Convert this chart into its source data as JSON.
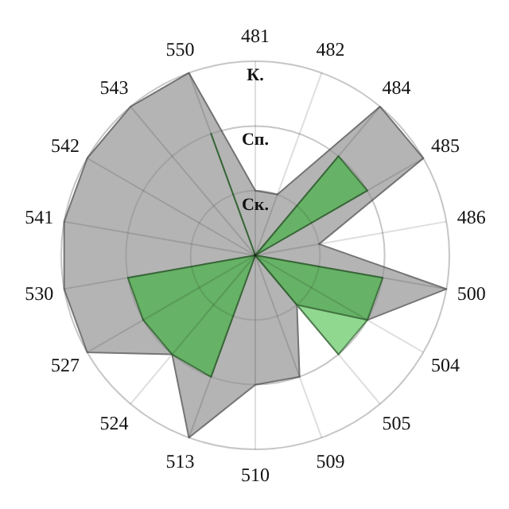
{
  "chart_data": {
    "type": "radar",
    "categories": [
      "481",
      "482",
      "484",
      "485",
      "486",
      "500",
      "504",
      "505",
      "509",
      "510",
      "513",
      "524",
      "527",
      "530",
      "541",
      "542",
      "543",
      "550"
    ],
    "ylim": [
      0,
      3
    ],
    "yticks": [
      {
        "value": 1,
        "label": "Ск."
      },
      {
        "value": 2,
        "label": "Сп."
      },
      {
        "value": 3,
        "label": "К."
      }
    ],
    "grid": true,
    "series": [
      {
        "color": "#b4b4b4",
        "values": [
          1,
          1,
          3,
          3,
          1,
          3,
          2,
          1,
          2,
          2,
          3,
          2,
          3,
          3,
          3,
          3,
          3,
          3
        ]
      },
      {
        "color": "#90d890",
        "values": [
          0,
          0,
          0,
          0,
          0,
          0,
          2,
          2,
          0,
          0,
          0,
          0,
          0,
          0,
          0,
          0,
          0,
          0
        ]
      },
      {
        "color": "#66b266",
        "values": [
          0,
          0,
          2,
          2,
          0,
          2,
          2,
          1,
          0,
          0,
          2,
          2,
          2,
          2,
          0,
          0,
          0,
          2
        ]
      }
    ]
  }
}
